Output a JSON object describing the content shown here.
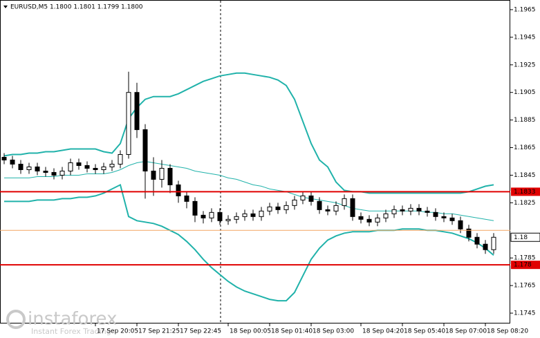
{
  "chart_data": {
    "type": "candlestick",
    "title": "EURUSD,M5  1.1800 1.1801 1.1799 1.1800",
    "watermark": {
      "brand": "instaforex",
      "tagline": "Instant Forex Trading"
    },
    "open": [
      1.1858,
      1.1856,
      1.1853,
      1.1849,
      1.1851,
      1.1848,
      1.1847,
      1.1845,
      1.1848,
      1.1854,
      1.1852,
      1.185,
      1.1849,
      1.1851,
      1.1853,
      1.186,
      1.1905,
      1.1878,
      1.1848,
      1.1842,
      1.185,
      1.1838,
      1.183,
      1.1826,
      1.1816,
      1.1814,
      1.1818,
      1.1812,
      1.1813,
      1.1815,
      1.1817,
      1.1815,
      1.1819,
      1.1822,
      1.182,
      1.1823,
      1.1827,
      1.183,
      1.1826,
      1.182,
      1.1819,
      1.1823,
      1.1828,
      1.1815,
      1.1813,
      1.1811,
      1.1814,
      1.1817,
      1.182,
      1.1819,
      1.1821,
      1.1819,
      1.1818,
      1.1815,
      1.1814,
      1.1812,
      1.1806,
      1.18,
      1.1795,
      1.1791
    ],
    "high": [
      1.1861,
      1.1859,
      1.1856,
      1.1854,
      1.1854,
      1.1851,
      1.185,
      1.1851,
      1.1857,
      1.1857,
      1.1855,
      1.1853,
      1.1854,
      1.1856,
      1.1863,
      1.192,
      1.1912,
      1.1882,
      1.1858,
      1.1856,
      1.1853,
      1.1841,
      1.1833,
      1.1829,
      1.1819,
      1.1821,
      1.1821,
      1.1816,
      1.1818,
      1.182,
      1.182,
      1.1822,
      1.1825,
      1.1825,
      1.1826,
      1.183,
      1.1833,
      1.1833,
      1.1829,
      1.1823,
      1.1826,
      1.1831,
      1.1831,
      1.1818,
      1.1816,
      1.1817,
      1.182,
      1.1823,
      1.1823,
      1.1824,
      1.1824,
      1.1822,
      1.1821,
      1.1818,
      1.1817,
      1.1815,
      1.1809,
      1.1803,
      1.1798,
      1.1803
    ],
    "low": [
      1.1853,
      1.185,
      1.1846,
      1.1846,
      1.1845,
      1.1844,
      1.1842,
      1.1842,
      1.1845,
      1.1849,
      1.1847,
      1.1846,
      1.1846,
      1.1848,
      1.185,
      1.1857,
      1.1872,
      1.1828,
      1.183,
      1.1836,
      1.1832,
      1.1825,
      1.1821,
      1.1811,
      1.181,
      1.1811,
      1.1809,
      1.1809,
      1.181,
      1.1812,
      1.1812,
      1.1812,
      1.1816,
      1.1817,
      1.1817,
      1.182,
      1.1824,
      1.1823,
      1.1817,
      1.1816,
      1.1816,
      1.182,
      1.1812,
      1.181,
      1.1808,
      1.1808,
      1.1811,
      1.1814,
      1.1816,
      1.1816,
      1.1816,
      1.1815,
      1.1812,
      1.1811,
      1.1809,
      1.1803,
      1.1797,
      1.1792,
      1.1788,
      1.1788
    ],
    "close": [
      1.1856,
      1.1853,
      1.1849,
      1.1851,
      1.1848,
      1.1847,
      1.1845,
      1.1848,
      1.1854,
      1.1852,
      1.185,
      1.1849,
      1.1851,
      1.1853,
      1.186,
      1.1905,
      1.1878,
      1.1848,
      1.1842,
      1.185,
      1.1838,
      1.183,
      1.1826,
      1.1816,
      1.1814,
      1.1818,
      1.1812,
      1.1813,
      1.1815,
      1.1817,
      1.1815,
      1.1819,
      1.1822,
      1.182,
      1.1823,
      1.1827,
      1.183,
      1.1826,
      1.182,
      1.1819,
      1.1823,
      1.1828,
      1.1815,
      1.1813,
      1.1811,
      1.1814,
      1.1817,
      1.182,
      1.1819,
      1.1821,
      1.1819,
      1.1818,
      1.1815,
      1.1814,
      1.1812,
      1.1806,
      1.18,
      1.1795,
      1.1791,
      1.18
    ],
    "candle_color": "#000000",
    "series": [
      {
        "color": "#20b2aa",
        "width": 2,
        "values": [
          1.1859,
          1.186,
          1.186,
          1.1861,
          1.1861,
          1.1862,
          1.1862,
          1.1863,
          1.1864,
          1.1864,
          1.1864,
          1.1864,
          1.1862,
          1.1861,
          1.1868,
          1.1886,
          1.1894,
          1.19,
          1.1902,
          1.1902,
          1.1902,
          1.1904,
          1.1907,
          1.191,
          1.1913,
          1.1915,
          1.1917,
          1.1918,
          1.1919,
          1.1919,
          1.1918,
          1.1917,
          1.1916,
          1.1914,
          1.191,
          1.19,
          1.1884,
          1.1868,
          1.1856,
          1.1851,
          1.184,
          1.1834,
          1.1833,
          1.1833,
          1.1832,
          1.1832,
          1.1832,
          1.1832,
          1.1832,
          1.1832,
          1.1832,
          1.1832,
          1.1832,
          1.1832,
          1.1832,
          1.1832,
          1.1833,
          1.1835,
          1.1837,
          1.1838
        ]
      },
      {
        "color": "#20b2aa",
        "width": 1,
        "values": [
          1.1843,
          1.1843,
          1.1843,
          1.1843,
          1.1844,
          1.1844,
          1.1844,
          1.1845,
          1.1845,
          1.1845,
          1.1846,
          1.1846,
          1.1846,
          1.1847,
          1.1849,
          1.1852,
          1.1854,
          1.1855,
          1.1854,
          1.1853,
          1.1852,
          1.1851,
          1.185,
          1.1848,
          1.1847,
          1.1846,
          1.1845,
          1.1843,
          1.1842,
          1.184,
          1.1838,
          1.1837,
          1.1835,
          1.1834,
          1.1833,
          1.1831,
          1.1829,
          1.1828,
          1.1827,
          1.1826,
          1.1825,
          1.1823,
          1.1821,
          1.182,
          1.1819,
          1.1819,
          1.1819,
          1.1819,
          1.1819,
          1.1819,
          1.1819,
          1.1818,
          1.1818,
          1.1817,
          1.1817,
          1.1816,
          1.1815,
          1.1814,
          1.1813,
          1.1812
        ]
      },
      {
        "color": "#20b2aa",
        "width": 2,
        "values": [
          1.1826,
          1.1826,
          1.1826,
          1.1826,
          1.1827,
          1.1827,
          1.1827,
          1.1828,
          1.1828,
          1.1829,
          1.1829,
          1.183,
          1.1832,
          1.1835,
          1.1838,
          1.1815,
          1.1812,
          1.1811,
          1.181,
          1.1808,
          1.1805,
          1.1802,
          1.1797,
          1.1791,
          1.1784,
          1.1778,
          1.1773,
          1.1768,
          1.1764,
          1.1761,
          1.1759,
          1.1757,
          1.1755,
          1.1754,
          1.1754,
          1.176,
          1.1772,
          1.1784,
          1.1792,
          1.1798,
          1.1801,
          1.1803,
          1.1804,
          1.1804,
          1.1804,
          1.1805,
          1.1805,
          1.1805,
          1.1806,
          1.1806,
          1.1806,
          1.1805,
          1.1805,
          1.1804,
          1.1803,
          1.1801,
          1.1799,
          1.1796,
          1.1792,
          1.1787
        ]
      }
    ],
    "levels": [
      {
        "value": 1.1833,
        "color": "#e00000"
      },
      {
        "value": 1.178,
        "color": "#e00000"
      }
    ],
    "ask_line": {
      "value": 1.1805,
      "color": "#f4a460"
    },
    "current_price": 1.18,
    "xlim": [
      -0.5,
      61
    ],
    "xticks": [
      {
        "value": 11,
        "label": "17 Sep 20:05"
      },
      {
        "value": 16,
        "label": "17 Sep 21:25"
      },
      {
        "value": 21,
        "label": "17 Sep 22:45"
      },
      {
        "value": 27,
        "label": "18 Sep 00:05"
      },
      {
        "value": 32,
        "label": "18 Sep 01:40"
      },
      {
        "value": 37,
        "label": "18 Sep 03:00"
      },
      {
        "value": 43,
        "label": "18 Sep 04:20"
      },
      {
        "value": 48,
        "label": "18 Sep 05:40"
      },
      {
        "value": 53,
        "label": "18 Sep 07:00"
      },
      {
        "value": 58,
        "label": "18 Sep 08:20"
      }
    ],
    "ylim": [
      1.17375,
      1.1972
    ],
    "yticks": [
      1.1745,
      1.1765,
      1.1785,
      1.1825,
      1.1845,
      1.1865,
      1.1885,
      1.1905,
      1.1925,
      1.1945,
      1.1965
    ]
  }
}
